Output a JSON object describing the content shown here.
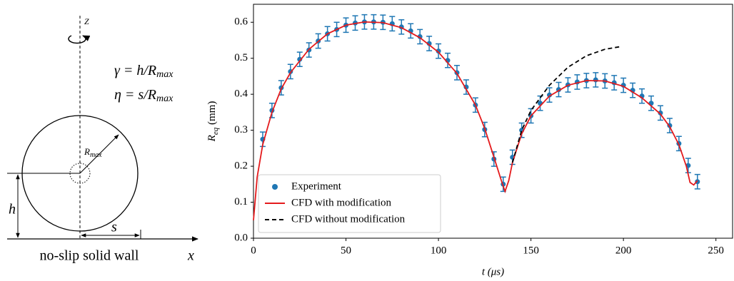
{
  "diagram": {
    "axis_label": "Z",
    "gamma": {
      "lhs": "γ = h/R",
      "sub": "max"
    },
    "eta": {
      "lhs": "η = s/R",
      "sub": "max"
    },
    "radius": {
      "base": "R",
      "sub": "max"
    },
    "height": "h",
    "offset": "s",
    "wall": "no-slip solid wall",
    "x_axis": "x"
  },
  "chart_data": {
    "type": "line",
    "xlabel": "t (μs)",
    "ylabel": {
      "base": "R",
      "sub": "eq",
      "unit": " (mm)"
    },
    "xlim": [
      0,
      259
    ],
    "ylim": [
      0,
      0.65
    ],
    "xticks": [
      0,
      50,
      100,
      150,
      200,
      250
    ],
    "yticks": [
      {
        "value": 0,
        "label": "0.0"
      },
      0.1,
      0.2,
      0.3,
      0.4,
      0.5,
      0.6
    ],
    "legend": "lower left",
    "series": [
      {
        "name": "Experiment",
        "type": "scatter",
        "color": "#1f77b4",
        "error": 0.02,
        "x": [
          5,
          10,
          15,
          20,
          25,
          30,
          35,
          40,
          45,
          50,
          55,
          60,
          65,
          70,
          75,
          80,
          85,
          90,
          95,
          100,
          105,
          110,
          115,
          120,
          125,
          130,
          135,
          140,
          145,
          150,
          155,
          160,
          165,
          170,
          175,
          180,
          185,
          190,
          195,
          200,
          205,
          210,
          215,
          220,
          225,
          230,
          235,
          240
        ],
        "values": [
          0.275,
          0.355,
          0.418,
          0.463,
          0.497,
          0.523,
          0.548,
          0.568,
          0.58,
          0.592,
          0.598,
          0.601,
          0.601,
          0.6,
          0.596,
          0.587,
          0.576,
          0.56,
          0.541,
          0.52,
          0.494,
          0.46,
          0.42,
          0.37,
          0.302,
          0.22,
          0.15,
          0.225,
          0.3,
          0.34,
          0.375,
          0.398,
          0.413,
          0.426,
          0.434,
          0.438,
          0.44,
          0.437,
          0.432,
          0.425,
          0.411,
          0.395,
          0.375,
          0.348,
          0.313,
          0.263,
          0.202,
          0.157
        ]
      },
      {
        "name": "CFD with modification",
        "type": "line",
        "color": "#e41a1c",
        "linestyle": "solid",
        "x": [
          0,
          2,
          5,
          10,
          15,
          20,
          30,
          40,
          50,
          60,
          70,
          80,
          90,
          100,
          110,
          120,
          125,
          130,
          134,
          136,
          138,
          140,
          145,
          150,
          160,
          170,
          180,
          190,
          200,
          210,
          220,
          225,
          230,
          234,
          236,
          238,
          240
        ],
        "values": [
          0.05,
          0.17,
          0.26,
          0.35,
          0.415,
          0.46,
          0.525,
          0.568,
          0.592,
          0.601,
          0.599,
          0.585,
          0.557,
          0.517,
          0.458,
          0.37,
          0.305,
          0.225,
          0.16,
          0.13,
          0.16,
          0.21,
          0.29,
          0.34,
          0.395,
          0.425,
          0.438,
          0.437,
          0.422,
          0.39,
          0.345,
          0.31,
          0.26,
          0.2,
          0.155,
          0.148,
          0.16
        ]
      },
      {
        "name": "CFD without modification",
        "type": "line",
        "color": "#000000",
        "linestyle": "dashed",
        "x": [
          140,
          145,
          150,
          160,
          170,
          180,
          190,
          198
        ],
        "values": [
          0.21,
          0.3,
          0.355,
          0.425,
          0.475,
          0.507,
          0.525,
          0.532
        ]
      }
    ]
  }
}
